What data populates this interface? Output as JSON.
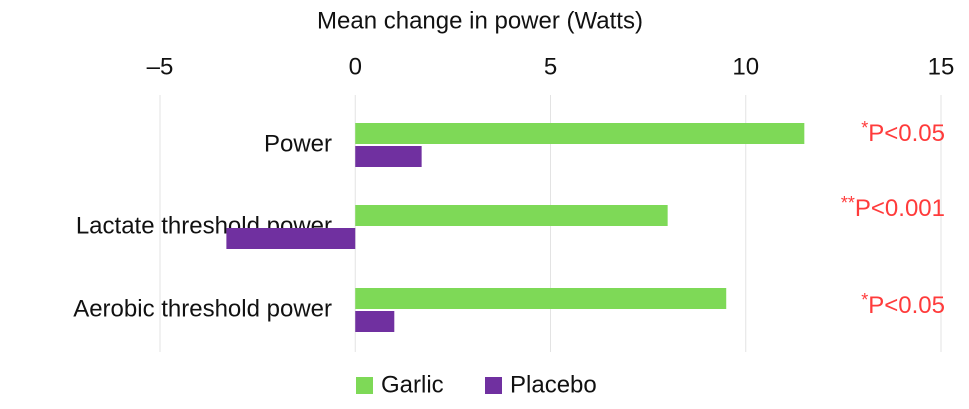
{
  "chart_data": {
    "type": "barh",
    "title": "Mean change in power (Watts)",
    "categories": [
      "Power",
      "Lactate threshold power",
      "Aerobic threshold power"
    ],
    "series": [
      {
        "name": "Garlic",
        "color": "#7ed957",
        "values": [
          11.5,
          8.0,
          9.5
        ]
      },
      {
        "name": "Placebo",
        "color": "#7030a0",
        "values": [
          1.7,
          -3.3,
          1.0
        ]
      }
    ],
    "xlim": [
      -5,
      15
    ],
    "xticks": [
      {
        "value": -5,
        "label": "–5"
      },
      0,
      5,
      10,
      15
    ],
    "grid": true,
    "annotations": [
      {
        "marker": "*",
        "text": "P<0.05"
      },
      {
        "marker": "**",
        "text": "P<0.001"
      },
      {
        "marker": "*",
        "text": "P<0.05"
      }
    ],
    "annotation_color": "#ff3b3b"
  }
}
